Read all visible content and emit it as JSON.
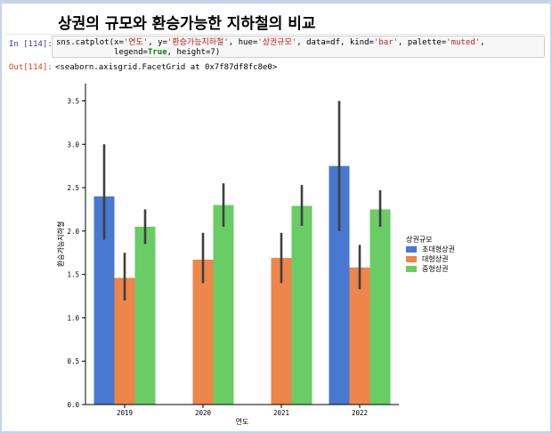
{
  "notebook": {
    "heading": "상권의 규모와 환승가능한 지하철의 비교",
    "input_prompt": "In [114]:",
    "output_prompt": "Out[114]:",
    "code_line1_parts": [
      {
        "t": "sns.catplot(x=",
        "c": ""
      },
      {
        "t": "'연도'",
        "c": "str"
      },
      {
        "t": ", y=",
        "c": ""
      },
      {
        "t": "'환승가능지하철'",
        "c": "str"
      },
      {
        "t": ", hue=",
        "c": ""
      },
      {
        "t": "'상권규모'",
        "c": "str"
      },
      {
        "t": ", data=df, kind=",
        "c": ""
      },
      {
        "t": "'bar'",
        "c": "str"
      },
      {
        "t": ", palette=",
        "c": ""
      },
      {
        "t": "'muted'",
        "c": "str"
      },
      {
        "t": ",",
        "c": ""
      }
    ],
    "code_line2_parts": [
      {
        "t": "            legend=",
        "c": ""
      },
      {
        "t": "True",
        "c": "kw"
      },
      {
        "t": ", height=7)",
        "c": ""
      }
    ],
    "output_text": "<seaborn.axisgrid.FacetGrid at 0x7f87df8fc8e0>"
  },
  "chart_data": {
    "type": "bar",
    "categories": [
      "2019",
      "2020",
      "2021",
      "2022"
    ],
    "xlabel": "연도",
    "ylabel": "환승가능지하철",
    "ylim": [
      0,
      3.7
    ],
    "yticks": [
      "0.0",
      "0.5",
      "1.0",
      "1.5",
      "2.0",
      "2.5",
      "3.0",
      "3.5"
    ],
    "legend_title": "상권규모",
    "legend_position": "right",
    "series": [
      {
        "name": "초대형상권",
        "color": "#4878d0",
        "values": [
          2.4,
          null,
          null,
          2.75
        ],
        "ci_low": [
          1.9,
          null,
          null,
          2.0
        ],
        "ci_high": [
          3.0,
          null,
          null,
          3.5
        ]
      },
      {
        "name": "대형상권",
        "color": "#ee854a",
        "values": [
          1.46,
          1.67,
          1.69,
          1.58
        ],
        "ci_low": [
          1.2,
          1.4,
          1.4,
          1.33
        ],
        "ci_high": [
          1.75,
          1.98,
          1.98,
          1.84
        ]
      },
      {
        "name": "중형상권",
        "color": "#6acc64",
        "values": [
          2.05,
          2.3,
          2.29,
          2.25
        ],
        "ci_low": [
          1.85,
          2.05,
          2.06,
          2.05
        ],
        "ci_high": [
          2.25,
          2.55,
          2.53,
          2.47
        ]
      }
    ]
  }
}
